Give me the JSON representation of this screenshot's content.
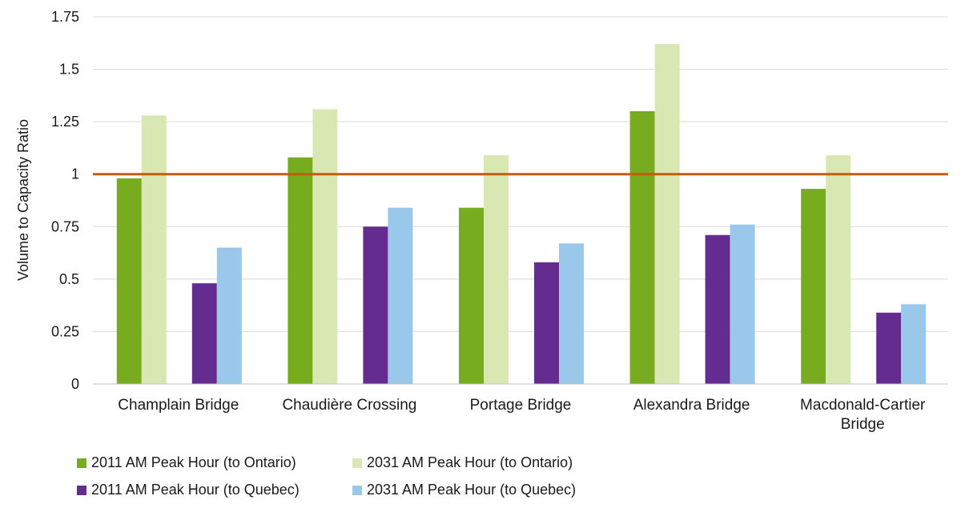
{
  "chart_data": {
    "type": "bar",
    "title": "",
    "xlabel": "",
    "ylabel": "Volume to Capacity Ratio",
    "ylim": [
      0,
      1.75
    ],
    "yticks": [
      "0",
      "0.25",
      "0.5",
      "0.75",
      "1",
      "1.25",
      "1.5",
      "1.75"
    ],
    "grid": true,
    "legend_position": "bottom",
    "categories": [
      [
        "Champlain Bridge"
      ],
      [
        "Chaudière Crossing"
      ],
      [
        "Portage Bridge"
      ],
      [
        "Alexandra Bridge"
      ],
      [
        "Macdonald-Cartier",
        "Bridge"
      ]
    ],
    "series": [
      {
        "name": "2011 AM Peak Hour (to Ontario)",
        "color": "#77ac1e",
        "values": [
          0.98,
          1.08,
          0.84,
          1.3,
          0.93
        ]
      },
      {
        "name": "2031 AM Peak Hour (to Ontario)",
        "color": "#d9e8b2",
        "values": [
          1.28,
          1.31,
          1.09,
          1.62,
          1.09
        ]
      },
      {
        "name": "2011 AM Peak Hour (to Quebec)",
        "color": "#652c8f",
        "values": [
          0.48,
          0.75,
          0.58,
          0.71,
          0.34
        ]
      },
      {
        "name": "2031 AM Peak Hour (to Quebec)",
        "color": "#9ac8ea",
        "values": [
          0.65,
          0.84,
          0.67,
          0.76,
          0.38
        ]
      }
    ],
    "reference_line": {
      "value": 1,
      "color": "#c55a11"
    }
  }
}
